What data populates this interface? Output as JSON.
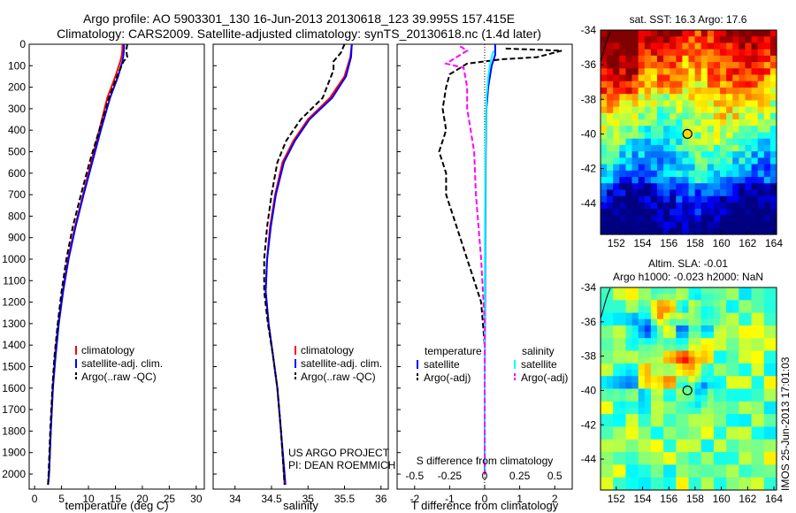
{
  "header": {
    "line1": "Argo profile: AO 5903301_130 16-Jun-2013 20130618_123 39.995S 157.415E",
    "line2": "Climatology: CARS2009. Satellite-adjusted climatology: synTS_20130618.nc (1.4d later)"
  },
  "colors": {
    "climatology": "#ff0000",
    "satellite": "#0000ff",
    "argo": "#000000",
    "sal_satellite": "#00ffff",
    "sal_argo": "#ff00ff"
  },
  "credits": {
    "project": "US ARGO PROJECT",
    "pi": "PI: DEAN ROEMMICH"
  },
  "stamp": "IMOS 25-Jun-2013 17:01:03",
  "chart_data": [
    {
      "type": "line",
      "id": "temperature",
      "xlabel": "temperature (deg C)",
      "xlim": [
        -1,
        31.5
      ],
      "xticks": [
        0,
        5,
        10,
        15,
        20,
        25,
        30
      ],
      "ylim": [
        0,
        2070
      ],
      "yticks": [
        0,
        100,
        200,
        300,
        400,
        500,
        600,
        700,
        800,
        900,
        1000,
        1100,
        1200,
        1300,
        1400,
        1500,
        1600,
        1700,
        1800,
        1900,
        2000
      ],
      "y_reversed": true,
      "legend": {
        "position": "lower-center",
        "entries": [
          "climatology",
          "satellite-adj. clim.",
          "Argo(..raw -QC)"
        ]
      },
      "series": [
        {
          "name": "climatology",
          "color": "#ff0000",
          "dash": "",
          "points": [
            [
              16.3,
              0
            ],
            [
              16.3,
              20
            ],
            [
              16.2,
              50
            ],
            [
              15.9,
              80
            ],
            [
              15.0,
              150
            ],
            [
              13.5,
              250
            ],
            [
              12.0,
              400
            ],
            [
              10.5,
              550
            ],
            [
              9.0,
              700
            ],
            [
              7.5,
              850
            ],
            [
              6.2,
              1000
            ],
            [
              5.2,
              1150
            ],
            [
              4.4,
              1300
            ],
            [
              3.8,
              1450
            ],
            [
              3.4,
              1600
            ],
            [
              3.0,
              1800
            ],
            [
              2.7,
              2000
            ],
            [
              2.5,
              2050
            ]
          ]
        },
        {
          "name": "satellite-adj. clim.",
          "color": "#0000ff",
          "dash": "",
          "points": [
            [
              16.6,
              0
            ],
            [
              16.6,
              20
            ],
            [
              16.5,
              50
            ],
            [
              16.3,
              80
            ],
            [
              15.5,
              150
            ],
            [
              14.0,
              250
            ],
            [
              12.3,
              400
            ],
            [
              10.7,
              550
            ],
            [
              9.1,
              700
            ],
            [
              7.6,
              850
            ],
            [
              6.3,
              1000
            ],
            [
              5.3,
              1150
            ],
            [
              4.5,
              1300
            ],
            [
              3.9,
              1450
            ],
            [
              3.4,
              1600
            ],
            [
              3.0,
              1800
            ],
            [
              2.7,
              2000
            ],
            [
              2.5,
              2050
            ]
          ]
        },
        {
          "name": "Argo(..raw -QC)",
          "color": "#000000",
          "dash": "6,3",
          "points": [
            [
              17.2,
              0
            ],
            [
              17.0,
              30
            ],
            [
              17.2,
              60
            ],
            [
              16.5,
              80
            ],
            [
              15.3,
              150
            ],
            [
              13.8,
              250
            ],
            [
              12.0,
              400
            ],
            [
              10.2,
              550
            ],
            [
              8.6,
              700
            ],
            [
              7.1,
              850
            ],
            [
              5.9,
              1000
            ],
            [
              5.0,
              1150
            ],
            [
              4.3,
              1300
            ],
            [
              3.7,
              1450
            ],
            [
              3.3,
              1600
            ],
            [
              2.9,
              1800
            ],
            [
              2.6,
              2000
            ],
            [
              2.5,
              2050
            ]
          ]
        }
      ]
    },
    {
      "type": "line",
      "id": "salinity",
      "xlabel": "salinity",
      "xlim": [
        33.7,
        36.1
      ],
      "xticks": [
        34,
        34.5,
        35,
        35.5,
        36
      ],
      "ylim": [
        0,
        2070
      ],
      "y_reversed": true,
      "legend": {
        "position": "lower-center",
        "entries": [
          "climatology",
          "satellite-adj. clim.",
          "Argo(..raw -QC)"
        ]
      },
      "series": [
        {
          "name": "climatology",
          "color": "#ff0000",
          "dash": "",
          "points": [
            [
              35.6,
              0
            ],
            [
              35.58,
              60
            ],
            [
              35.5,
              150
            ],
            [
              35.3,
              250
            ],
            [
              35.0,
              350
            ],
            [
              34.8,
              450
            ],
            [
              34.65,
              550
            ],
            [
              34.55,
              700
            ],
            [
              34.48,
              850
            ],
            [
              34.44,
              1000
            ],
            [
              34.42,
              1150
            ],
            [
              34.46,
              1300
            ],
            [
              34.52,
              1450
            ],
            [
              34.58,
              1600
            ],
            [
              34.63,
              1800
            ],
            [
              34.67,
              2000
            ],
            [
              34.68,
              2050
            ]
          ]
        },
        {
          "name": "satellite-adj. clim.",
          "color": "#0000ff",
          "dash": "",
          "points": [
            [
              35.6,
              0
            ],
            [
              35.59,
              60
            ],
            [
              35.52,
              150
            ],
            [
              35.33,
              250
            ],
            [
              35.02,
              350
            ],
            [
              34.82,
              450
            ],
            [
              34.67,
              550
            ],
            [
              34.56,
              700
            ],
            [
              34.49,
              850
            ],
            [
              34.44,
              1000
            ],
            [
              34.42,
              1150
            ],
            [
              34.46,
              1300
            ],
            [
              34.52,
              1450
            ],
            [
              34.58,
              1600
            ],
            [
              34.63,
              1800
            ],
            [
              34.68,
              2000
            ],
            [
              34.69,
              2050
            ]
          ]
        },
        {
          "name": "Argo(..raw -QC)",
          "color": "#000000",
          "dash": "6,3",
          "points": [
            [
              35.5,
              0
            ],
            [
              35.45,
              40
            ],
            [
              35.35,
              80
            ],
            [
              35.35,
              120
            ],
            [
              35.2,
              250
            ],
            [
              34.9,
              350
            ],
            [
              34.7,
              450
            ],
            [
              34.58,
              550
            ],
            [
              34.5,
              700
            ],
            [
              34.44,
              850
            ],
            [
              34.4,
              1000
            ],
            [
              34.4,
              1150
            ],
            [
              34.45,
              1300
            ],
            [
              34.52,
              1450
            ],
            [
              34.58,
              1600
            ],
            [
              34.63,
              1800
            ],
            [
              34.67,
              2000
            ],
            [
              34.68,
              2050
            ]
          ]
        }
      ]
    },
    {
      "type": "line",
      "id": "difference",
      "xlabel": "T difference from climatology",
      "xlabel_top": "S difference from climatology",
      "xlim": [
        -2.5,
        2.5
      ],
      "xticks": [
        -2,
        -1,
        0,
        1,
        2
      ],
      "xticks_s": [
        -0.5,
        -0.25,
        0,
        0.25,
        0.5
      ],
      "ylim": [
        0,
        2070
      ],
      "y_reversed": true,
      "legend": {
        "position": "lower-center",
        "group_labels": [
          "temperature",
          "salinity"
        ],
        "entries": [
          "satellite",
          "Argo(-adj)",
          "satellite",
          "Argo(-adj)"
        ]
      },
      "series": [
        {
          "name": "satellite",
          "group": "temperature",
          "color": "#0000ff",
          "dash": "",
          "points": [
            [
              0.3,
              0
            ],
            [
              0.3,
              50
            ],
            [
              0.2,
              100
            ],
            [
              0.1,
              200
            ],
            [
              0.05,
              300
            ],
            [
              0.03,
              500
            ],
            [
              0.02,
              800
            ],
            [
              0.01,
              1200
            ],
            [
              0,
              1600
            ],
            [
              0,
              2000
            ]
          ]
        },
        {
          "name": "Argo(-adj)",
          "group": "temperature",
          "color": "#000000",
          "dash": "6,3",
          "points": [
            [
              0.6,
              20
            ],
            [
              2.2,
              30
            ],
            [
              1.5,
              60
            ],
            [
              0.5,
              70
            ],
            [
              -0.5,
              90
            ],
            [
              -1.0,
              140
            ],
            [
              -1.1,
              200
            ],
            [
              -1.2,
              300
            ],
            [
              -1.1,
              400
            ],
            [
              -1.3,
              500
            ],
            [
              -1.1,
              600
            ],
            [
              -1.1,
              700
            ],
            [
              -0.9,
              800
            ],
            [
              -0.7,
              900
            ],
            [
              -0.5,
              1000
            ],
            [
              -0.3,
              1100
            ],
            [
              -0.1,
              1200
            ],
            [
              0,
              1400
            ],
            [
              0,
              1600
            ],
            [
              0,
              2000
            ]
          ]
        },
        {
          "name": "satellite",
          "group": "salinity",
          "color": "#00ffff",
          "dash": "",
          "points": [
            [
              0.25,
              30
            ],
            [
              0.2,
              60
            ],
            [
              0.15,
              100
            ],
            [
              0.1,
              150
            ],
            [
              0.05,
              250
            ],
            [
              0.02,
              500
            ],
            [
              0.01,
              800
            ],
            [
              0,
              1200
            ],
            [
              0,
              1600
            ],
            [
              0.01,
              2000
            ]
          ]
        },
        {
          "name": "Argo(-adj)",
          "group": "salinity",
          "color": "#ff00ff",
          "dash": "6,3",
          "points": [
            [
              -0.7,
              10
            ],
            [
              -0.5,
              30
            ],
            [
              -1.1,
              90
            ],
            [
              -0.6,
              110
            ],
            [
              -0.5,
              200
            ],
            [
              -0.5,
              300
            ],
            [
              -0.3,
              500
            ],
            [
              -0.25,
              700
            ],
            [
              -0.1,
              1000
            ],
            [
              0,
              1300
            ],
            [
              0,
              1600
            ],
            [
              0,
              2000
            ]
          ]
        }
      ]
    },
    {
      "type": "heatmap",
      "id": "sst-map",
      "title": "sat. SST: 16.3 Argo: 17.6",
      "xlim": [
        150.8,
        164.2
      ],
      "ylim": [
        -45.8,
        -34
      ],
      "xticks": [
        152,
        154,
        156,
        158,
        160,
        162,
        164
      ],
      "yticks": [
        -34,
        -36,
        -38,
        -40,
        -42,
        -44
      ],
      "marker": {
        "lon": 157.415,
        "lat": -39.995,
        "fill": "#ffdd00"
      }
    },
    {
      "type": "heatmap",
      "id": "sla-map",
      "title": "Altim. SLA: -0.01",
      "subtitle": "Argo h1000: -0.023 h2000: NaN",
      "xlim": [
        150.8,
        164.2
      ],
      "ylim": [
        -45.8,
        -34
      ],
      "xticks": [
        152,
        154,
        156,
        158,
        160,
        162,
        164
      ],
      "yticks": [
        -34,
        -36,
        -38,
        -40,
        -42,
        -44
      ],
      "marker": {
        "lon": 157.415,
        "lat": -39.995,
        "fill": "none"
      }
    }
  ]
}
